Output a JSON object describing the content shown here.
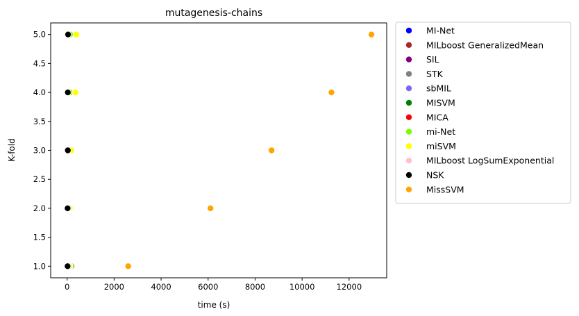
{
  "chart_data": {
    "type": "scatter",
    "title": "mutagenesis-chains",
    "xlabel": "time (s)",
    "ylabel": "K-fold",
    "xlim": [
      -700,
      13600
    ],
    "ylim": [
      0.8,
      5.2
    ],
    "xticks": [
      0,
      2000,
      4000,
      6000,
      8000,
      10000,
      12000
    ],
    "xtick_labels": [
      "0",
      "2000",
      "4000",
      "6000",
      "8000",
      "10000",
      "12000"
    ],
    "yticks": [
      1.0,
      1.5,
      2.0,
      2.5,
      3.0,
      3.5,
      4.0,
      4.5,
      5.0
    ],
    "ytick_labels": [
      "1.0",
      "1.5",
      "2.0",
      "2.5",
      "3.0",
      "3.5",
      "4.0",
      "4.5",
      "5.0"
    ],
    "grid": false,
    "legend_position": "outside-right",
    "series": [
      {
        "name": "MI-Net",
        "color": "#0000ff",
        "points": [
          [
            150,
            1
          ],
          [
            150,
            2
          ],
          [
            150,
            3
          ],
          [
            150,
            4
          ],
          [
            150,
            5
          ]
        ]
      },
      {
        "name": "MILboost GeneralizedMean",
        "color": "#a52a2a",
        "points": [
          [
            20,
            1
          ],
          [
            20,
            2
          ],
          [
            20,
            3
          ],
          [
            20,
            4
          ],
          [
            20,
            5
          ]
        ]
      },
      {
        "name": "SIL",
        "color": "#800080",
        "points": [
          [
            15,
            1
          ],
          [
            15,
            2
          ],
          [
            15,
            3
          ],
          [
            15,
            4
          ],
          [
            15,
            5
          ]
        ]
      },
      {
        "name": "STK",
        "color": "#808080",
        "points": [
          [
            100,
            1
          ],
          [
            100,
            2
          ],
          [
            100,
            3
          ],
          [
            100,
            4
          ],
          [
            100,
            5
          ]
        ]
      },
      {
        "name": "sbMIL",
        "color": "#7b68ee",
        "points": [
          [
            60,
            1
          ],
          [
            60,
            2
          ],
          [
            60,
            3
          ],
          [
            60,
            4
          ],
          [
            60,
            5
          ]
        ]
      },
      {
        "name": "MISVM",
        "color": "#008000",
        "points": [
          [
            180,
            1
          ],
          [
            120,
            2
          ],
          [
            120,
            3
          ],
          [
            120,
            4
          ],
          [
            120,
            5
          ]
        ]
      },
      {
        "name": "MICA",
        "color": "#ff0000",
        "points": [
          [
            80,
            1
          ],
          [
            80,
            2
          ],
          [
            80,
            3
          ],
          [
            80,
            4
          ],
          [
            80,
            5
          ]
        ]
      },
      {
        "name": "mi-Net",
        "color": "#7cfc00",
        "points": [
          [
            130,
            1
          ],
          [
            130,
            2
          ],
          [
            130,
            3
          ],
          [
            130,
            4
          ],
          [
            130,
            5
          ]
        ]
      },
      {
        "name": "miSVM",
        "color": "#ffff00",
        "points": [
          [
            100,
            1
          ],
          [
            100,
            2
          ],
          [
            180,
            3
          ],
          [
            350,
            4
          ],
          [
            400,
            5
          ]
        ]
      },
      {
        "name": "MILboost LogSumExponential",
        "color": "#ffc0cb",
        "points": [
          [
            30,
            1
          ],
          [
            30,
            2
          ],
          [
            30,
            3
          ],
          [
            30,
            4
          ],
          [
            30,
            5
          ]
        ]
      },
      {
        "name": "NSK",
        "color": "#000000",
        "points": [
          [
            20,
            1
          ],
          [
            20,
            2
          ],
          [
            30,
            3
          ],
          [
            30,
            4
          ],
          [
            40,
            5
          ]
        ]
      },
      {
        "name": "MissSVM",
        "color": "#ffa500",
        "points": [
          [
            2600,
            1
          ],
          [
            6100,
            2
          ],
          [
            8700,
            3
          ],
          [
            11250,
            4
          ],
          [
            12950,
            5
          ]
        ]
      }
    ]
  }
}
